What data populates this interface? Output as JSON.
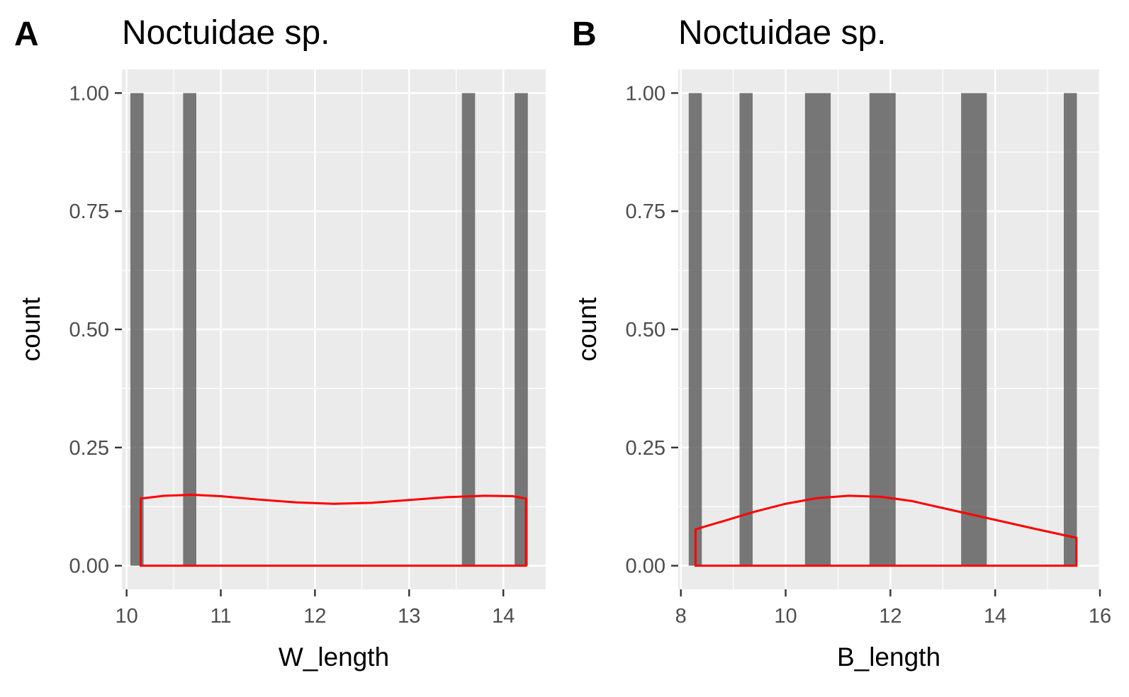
{
  "chart_data": [
    {
      "type": "histogram",
      "tag": "A",
      "title": "Noctuidae sp.",
      "xlabel": "W_length",
      "ylabel": "count",
      "xlim": [
        9.95,
        14.45
      ],
      "ylim": [
        -0.05,
        1.05
      ],
      "x_major_ticks": [
        10,
        11,
        12,
        13,
        14
      ],
      "x_tick_labels": [
        "10",
        "11",
        "12",
        "13",
        "14"
      ],
      "y_major_ticks": [
        0,
        0.25,
        0.5,
        0.75,
        1
      ],
      "y_tick_labels": [
        "0.00",
        "0.25",
        "0.50",
        "0.75",
        "1.00"
      ],
      "grid": true,
      "bars": [
        {
          "xmin": 10.04,
          "xmax": 10.18,
          "count": 1
        },
        {
          "xmin": 10.6,
          "xmax": 10.74,
          "count": 1
        },
        {
          "xmin": 13.56,
          "xmax": 13.7,
          "count": 1
        },
        {
          "xmin": 14.12,
          "xmax": 14.26,
          "count": 1
        }
      ],
      "density_curve": {
        "color": "#ff0000",
        "x": [
          10.15,
          10.4,
          10.7,
          11.0,
          11.4,
          11.8,
          12.2,
          12.6,
          13.0,
          13.4,
          13.8,
          14.1,
          14.24
        ],
        "y": [
          0.142,
          0.148,
          0.15,
          0.147,
          0.14,
          0.134,
          0.131,
          0.133,
          0.139,
          0.145,
          0.148,
          0.147,
          0.142
        ]
      }
    },
    {
      "type": "histogram",
      "tag": "B",
      "title": "Noctuidae sp.",
      "xlabel": "B_length",
      "ylabel": "count",
      "xlim": [
        7.95,
        16.0
      ],
      "ylim": [
        -0.05,
        1.05
      ],
      "x_major_ticks": [
        8,
        10,
        12,
        14,
        16
      ],
      "x_tick_labels": [
        "8",
        "10",
        "12",
        "14",
        "16"
      ],
      "y_major_ticks": [
        0,
        0.25,
        0.5,
        0.75,
        1
      ],
      "y_tick_labels": [
        "0.00",
        "0.25",
        "0.50",
        "0.75",
        "1.00"
      ],
      "grid": true,
      "bars": [
        {
          "xmin": 8.15,
          "xmax": 8.4,
          "count": 1
        },
        {
          "xmin": 9.12,
          "xmax": 9.37,
          "count": 1
        },
        {
          "xmin": 10.37,
          "xmax": 10.86,
          "count": 1
        },
        {
          "xmin": 11.6,
          "xmax": 12.1,
          "count": 1
        },
        {
          "xmin": 13.35,
          "xmax": 13.84,
          "count": 1
        },
        {
          "xmin": 15.31,
          "xmax": 15.56,
          "count": 1
        }
      ],
      "density_curve": {
        "color": "#ff0000",
        "x": [
          8.28,
          8.8,
          9.4,
          10.0,
          10.6,
          11.2,
          11.8,
          12.4,
          13.0,
          13.6,
          14.2,
          14.8,
          15.55
        ],
        "y": [
          0.077,
          0.094,
          0.114,
          0.131,
          0.143,
          0.148,
          0.146,
          0.137,
          0.122,
          0.107,
          0.092,
          0.077,
          0.059
        ]
      }
    }
  ]
}
